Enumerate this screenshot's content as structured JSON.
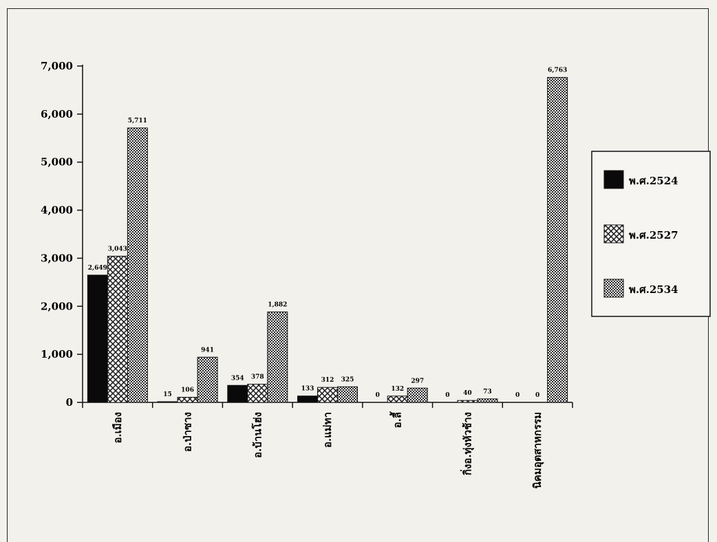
{
  "chart_data": {
    "type": "bar",
    "categories": [
      "อ.เมือง",
      "อ.ป่าซาง",
      "อ.บ้านโฮ่ง",
      "อ.แม่ทา",
      "อ.ลี้",
      "กิ่งอ.ทุ่งหัวช้าง",
      "นิคมอุตสาหกรรม"
    ],
    "series": [
      {
        "name": "พ.ศ.2524",
        "values": [
          2649,
          15,
          354,
          133,
          0,
          0,
          0
        ],
        "labels": [
          "2,649",
          "15",
          "354",
          "133",
          "0",
          "0",
          "0"
        ],
        "pattern": "solid"
      },
      {
        "name": "พ.ศ.2527",
        "values": [
          3043,
          106,
          378,
          312,
          132,
          40,
          0
        ],
        "labels": [
          "3,043",
          "106",
          "378",
          "312",
          "132",
          "40",
          "0"
        ],
        "pattern": "cross"
      },
      {
        "name": "พ.ศ.2534",
        "values": [
          5711,
          941,
          1882,
          325,
          297,
          73,
          6763
        ],
        "labels": [
          "5,711",
          "941",
          "1,882",
          "325",
          "297",
          "73",
          "6,763"
        ],
        "pattern": "checker"
      }
    ],
    "ylim": [
      0,
      7000
    ],
    "yticks": [
      0,
      1000,
      2000,
      3000,
      4000,
      5000,
      6000,
      7000
    ],
    "ytick_labels": [
      "0",
      "1,000",
      "2,000",
      "3,000",
      "4,000",
      "5,000",
      "6,000",
      "7,000"
    ],
    "title": "",
    "xlabel": "",
    "ylabel": "",
    "grid": false,
    "legend_position": "right",
    "colors": {
      "solid": "#0a0a0a",
      "pattern_ink": "#222222",
      "pattern_bg": "#ffffff"
    }
  }
}
